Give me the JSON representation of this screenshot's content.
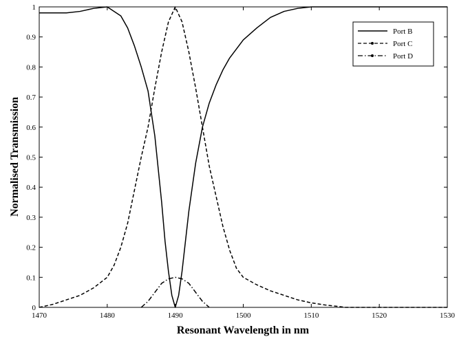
{
  "chart_data": {
    "type": "line",
    "xlabel": "Resonant Wavelength in nm",
    "ylabel": "Normalised Transmission",
    "xlim": [
      1470,
      1530
    ],
    "ylim": [
      0,
      1
    ],
    "xticks": [
      1470,
      1480,
      1490,
      1500,
      1510,
      1520,
      1530
    ],
    "yticks": [
      0,
      0.1,
      0.2,
      0.3,
      0.4,
      0.5,
      0.6,
      0.7,
      0.8,
      0.9,
      1
    ],
    "grid": false,
    "legend_position": "top-right",
    "series": [
      {
        "name": "Port B",
        "style": "solid",
        "color": "#000000",
        "x": [
          1470,
          1474,
          1476,
          1478,
          1480,
          1482,
          1483,
          1484,
          1485,
          1486,
          1487,
          1488,
          1488.5,
          1489,
          1489.5,
          1490,
          1490.5,
          1491,
          1491.5,
          1492,
          1493,
          1494,
          1495,
          1496,
          1497,
          1498,
          1499,
          1500,
          1502,
          1504,
          1506,
          1508,
          1510,
          1530
        ],
        "y": [
          0.98,
          0.98,
          0.985,
          0.995,
          1.0,
          0.97,
          0.93,
          0.87,
          0.8,
          0.72,
          0.57,
          0.35,
          0.22,
          0.12,
          0.04,
          0.0,
          0.04,
          0.12,
          0.22,
          0.32,
          0.48,
          0.6,
          0.68,
          0.74,
          0.79,
          0.83,
          0.86,
          0.89,
          0.93,
          0.965,
          0.985,
          0.995,
          1.0,
          1.0
        ]
      },
      {
        "name": "Port C",
        "style": "dashed",
        "color": "#000000",
        "x": [
          1470,
          1472,
          1474,
          1476,
          1478,
          1480,
          1481,
          1482,
          1483,
          1484,
          1485,
          1486,
          1487,
          1488,
          1489,
          1490,
          1491,
          1492,
          1493,
          1494,
          1495,
          1496,
          1497,
          1498,
          1499,
          1500,
          1502,
          1504,
          1506,
          1508,
          1510,
          1512,
          1514,
          1515,
          1530
        ],
        "y": [
          0.0,
          0.01,
          0.025,
          0.04,
          0.065,
          0.1,
          0.14,
          0.2,
          0.28,
          0.39,
          0.5,
          0.6,
          0.73,
          0.85,
          0.95,
          1.0,
          0.95,
          0.85,
          0.73,
          0.6,
          0.47,
          0.37,
          0.27,
          0.19,
          0.13,
          0.1,
          0.075,
          0.055,
          0.04,
          0.025,
          0.015,
          0.008,
          0.003,
          0.0,
          0.0
        ]
      },
      {
        "name": "Port D",
        "style": "dash-dot",
        "color": "#000000",
        "x": [
          1485,
          1486,
          1487,
          1488,
          1489,
          1490,
          1491,
          1492,
          1493,
          1494,
          1495
        ],
        "y": [
          0.0,
          0.02,
          0.05,
          0.08,
          0.095,
          0.1,
          0.095,
          0.08,
          0.05,
          0.02,
          0.0
        ]
      }
    ]
  }
}
